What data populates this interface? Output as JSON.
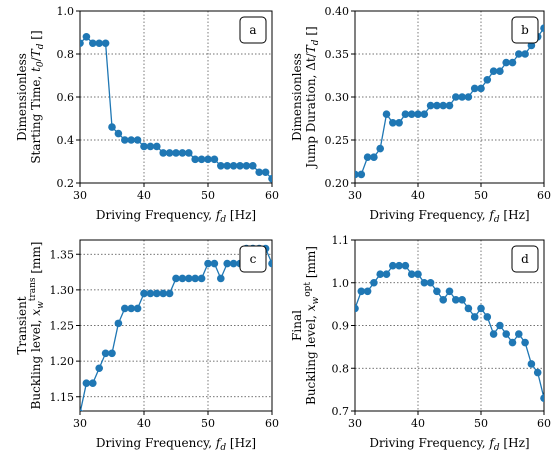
{
  "chart_data": [
    {
      "type": "line",
      "panel_label": "a",
      "xlabel": "Driving Frequency, f_d [Hz]",
      "ylabel_line1": "Dimensionless",
      "ylabel_line2": "Starting Time, t_0/T_d []",
      "xlim": [
        30,
        60
      ],
      "ylim": [
        0.2,
        1.0
      ],
      "xticks": [
        30,
        40,
        50,
        60
      ],
      "yticks": [
        0.2,
        0.4,
        0.6,
        0.8,
        1.0
      ],
      "ytick_labels": [
        "0.2",
        "0.4",
        "0.6",
        "0.8",
        "1.0"
      ],
      "grid": true,
      "series": [
        {
          "color": "#1f77b4",
          "x": [
            30,
            31,
            32,
            33,
            34,
            35,
            36,
            37,
            38,
            39,
            40,
            41,
            42,
            43,
            44,
            45,
            46,
            47,
            48,
            49,
            50,
            51,
            52,
            53,
            54,
            55,
            56,
            57,
            58,
            59,
            60
          ],
          "y": [
            0.85,
            0.88,
            0.85,
            0.85,
            0.85,
            0.46,
            0.43,
            0.4,
            0.4,
            0.4,
            0.37,
            0.37,
            0.37,
            0.34,
            0.34,
            0.34,
            0.34,
            0.34,
            0.31,
            0.31,
            0.31,
            0.31,
            0.28,
            0.28,
            0.28,
            0.28,
            0.28,
            0.28,
            0.25,
            0.25,
            0.22
          ]
        }
      ]
    },
    {
      "type": "line",
      "panel_label": "b",
      "xlabel": "Driving Frequency, f_d [Hz]",
      "ylabel_line1": "Dimensionless",
      "ylabel_line2": "Jump Duration, Δt/T_d []",
      "xlim": [
        30,
        60
      ],
      "ylim": [
        0.2,
        0.4
      ],
      "xticks": [
        30,
        40,
        50,
        60
      ],
      "yticks": [
        0.2,
        0.25,
        0.3,
        0.35,
        0.4
      ],
      "ytick_labels": [
        "0.20",
        "0.25",
        "0.30",
        "0.35",
        "0.40"
      ],
      "grid": true,
      "series": [
        {
          "color": "#1f77b4",
          "x": [
            30,
            31,
            32,
            33,
            34,
            35,
            36,
            37,
            38,
            39,
            40,
            41,
            42,
            43,
            44,
            45,
            46,
            47,
            48,
            49,
            50,
            51,
            52,
            53,
            54,
            55,
            56,
            57,
            58,
            59,
            60
          ],
          "y": [
            0.21,
            0.21,
            0.23,
            0.23,
            0.24,
            0.28,
            0.27,
            0.27,
            0.28,
            0.28,
            0.28,
            0.28,
            0.29,
            0.29,
            0.29,
            0.29,
            0.3,
            0.3,
            0.3,
            0.31,
            0.31,
            0.32,
            0.33,
            0.33,
            0.34,
            0.34,
            0.35,
            0.35,
            0.36,
            0.37,
            0.38
          ]
        }
      ]
    },
    {
      "type": "line",
      "panel_label": "c",
      "xlabel": "Driving Frequency, f_d [Hz]",
      "ylabel_line1": "Transient",
      "ylabel_line2": "Buckling level, x_w^trans [mm]",
      "xlim": [
        30,
        60
      ],
      "ylim": [
        1.13,
        1.37
      ],
      "xticks": [
        30,
        40,
        50,
        60
      ],
      "yticks": [
        1.15,
        1.2,
        1.25,
        1.3,
        1.35
      ],
      "ytick_labels": [
        "1.15",
        "1.20",
        "1.25",
        "1.30",
        "1.35"
      ],
      "grid": true,
      "series": [
        {
          "color": "#1f77b4",
          "x": [
            30,
            31,
            32,
            33,
            34,
            35,
            36,
            37,
            38,
            39,
            40,
            41,
            42,
            43,
            44,
            45,
            46,
            47,
            48,
            49,
            50,
            51,
            52,
            53,
            54,
            55,
            56,
            57,
            58,
            59,
            60
          ],
          "y": [
            1.127,
            1.169,
            1.169,
            1.19,
            1.211,
            1.211,
            1.253,
            1.274,
            1.274,
            1.274,
            1.295,
            1.295,
            1.295,
            1.295,
            1.295,
            1.316,
            1.316,
            1.316,
            1.316,
            1.316,
            1.337,
            1.337,
            1.316,
            1.337,
            1.337,
            1.337,
            1.358,
            1.358,
            1.358,
            1.358,
            1.337
          ]
        }
      ]
    },
    {
      "type": "line",
      "panel_label": "d",
      "xlabel": "Driving Frequency, f_d [Hz]",
      "ylabel_line1": "Final",
      "ylabel_line2": "Buckling level, x_w^opt [mm]",
      "xlim": [
        30,
        60
      ],
      "ylim": [
        0.7,
        1.1
      ],
      "xticks": [
        30,
        40,
        50,
        60
      ],
      "yticks": [
        0.7,
        0.8,
        0.9,
        1.0,
        1.1
      ],
      "ytick_labels": [
        "0.7",
        "0.8",
        "0.9",
        "1.0",
        "1.1"
      ],
      "grid": true,
      "series": [
        {
          "color": "#1f77b4",
          "x": [
            30,
            31,
            32,
            33,
            34,
            35,
            36,
            37,
            38,
            39,
            40,
            41,
            42,
            43,
            44,
            45,
            46,
            47,
            48,
            49,
            50,
            51,
            52,
            53,
            54,
            55,
            56,
            57,
            58,
            59,
            60
          ],
          "y": [
            0.94,
            0.98,
            0.98,
            1.0,
            1.02,
            1.02,
            1.04,
            1.04,
            1.04,
            1.02,
            1.02,
            1.0,
            1.0,
            0.98,
            0.96,
            0.98,
            0.96,
            0.96,
            0.94,
            0.92,
            0.94,
            0.92,
            0.88,
            0.9,
            0.88,
            0.86,
            0.88,
            0.86,
            0.81,
            0.79,
            0.73
          ]
        }
      ]
    }
  ]
}
